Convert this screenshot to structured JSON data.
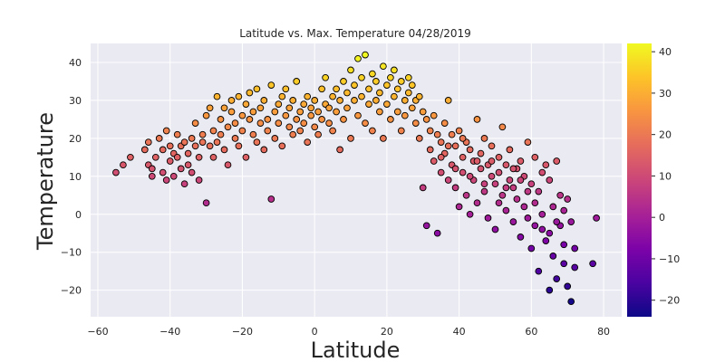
{
  "chart_data": {
    "type": "scatter",
    "title": "Latitude vs. Max. Temperature 04/28/2019",
    "xlabel": "Latitude",
    "ylabel": "Temperature",
    "xlim": [
      -62,
      85
    ],
    "ylim": [
      -27,
      45
    ],
    "x_ticks": [
      -60,
      -40,
      -20,
      0,
      20,
      40,
      60,
      80
    ],
    "y_ticks": [
      -20,
      -10,
      0,
      10,
      20,
      30,
      40
    ],
    "grid": true,
    "colorbar": {
      "colormap": "plasma",
      "range": [
        -24,
        42
      ],
      "ticks": [
        -20,
        -10,
        0,
        10,
        20,
        30,
        40
      ]
    },
    "points": [
      [
        -55,
        11
      ],
      [
        -53,
        13
      ],
      [
        -51,
        15
      ],
      [
        -47,
        17
      ],
      [
        -46,
        13
      ],
      [
        -46,
        19
      ],
      [
        -45,
        10
      ],
      [
        -45,
        12
      ],
      [
        -44,
        15
      ],
      [
        -43,
        20
      ],
      [
        -42,
        17
      ],
      [
        -42,
        11
      ],
      [
        -41,
        9
      ],
      [
        -41,
        22
      ],
      [
        -40,
        18
      ],
      [
        -40,
        14
      ],
      [
        -39,
        10
      ],
      [
        -39,
        16
      ],
      [
        -38,
        21
      ],
      [
        -38,
        15
      ],
      [
        -37,
        12
      ],
      [
        -37,
        18
      ],
      [
        -36,
        8
      ],
      [
        -36,
        19
      ],
      [
        -35,
        16
      ],
      [
        -35,
        13
      ],
      [
        -34,
        20
      ],
      [
        -34,
        11
      ],
      [
        -33,
        18
      ],
      [
        -33,
        24
      ],
      [
        -32,
        15
      ],
      [
        -32,
        9
      ],
      [
        -31,
        19
      ],
      [
        -31,
        21
      ],
      [
        -30,
        3
      ],
      [
        -30,
        26
      ],
      [
        -29,
        18
      ],
      [
        -29,
        28
      ],
      [
        -28,
        22
      ],
      [
        -28,
        15
      ],
      [
        -27,
        31
      ],
      [
        -27,
        19
      ],
      [
        -26,
        25
      ],
      [
        -26,
        21
      ],
      [
        -25,
        17
      ],
      [
        -25,
        28
      ],
      [
        -24,
        23
      ],
      [
        -24,
        13
      ],
      [
        -23,
        27
      ],
      [
        -23,
        30
      ],
      [
        -22,
        20
      ],
      [
        -22,
        24
      ],
      [
        -21,
        31
      ],
      [
        -21,
        18
      ],
      [
        -20,
        26
      ],
      [
        -20,
        22
      ],
      [
        -19,
        29
      ],
      [
        -19,
        15
      ],
      [
        -18,
        25
      ],
      [
        -18,
        32
      ],
      [
        -17,
        21
      ],
      [
        -17,
        27
      ],
      [
        -16,
        33
      ],
      [
        -16,
        19
      ],
      [
        -15,
        24
      ],
      [
        -15,
        28
      ],
      [
        -14,
        30
      ],
      [
        -14,
        17
      ],
      [
        -13,
        25
      ],
      [
        -13,
        22
      ],
      [
        -12,
        4
      ],
      [
        -12,
        34
      ],
      [
        -11,
        27
      ],
      [
        -11,
        20
      ],
      [
        -10,
        29
      ],
      [
        -10,
        24
      ],
      [
        -9,
        31
      ],
      [
        -9,
        18
      ],
      [
        -8,
        26
      ],
      [
        -8,
        33
      ],
      [
        -7,
        23
      ],
      [
        -7,
        28
      ],
      [
        -6,
        30
      ],
      [
        -6,
        21
      ],
      [
        -5,
        25
      ],
      [
        -5,
        35
      ],
      [
        -4,
        27
      ],
      [
        -4,
        22
      ],
      [
        -3,
        29
      ],
      [
        -3,
        24
      ],
      [
        -2,
        31
      ],
      [
        -2,
        19
      ],
      [
        -1,
        26
      ],
      [
        -1,
        28
      ],
      [
        0,
        23
      ],
      [
        0,
        30
      ],
      [
        1,
        27
      ],
      [
        1,
        21
      ],
      [
        2,
        33
      ],
      [
        2,
        25
      ],
      [
        3,
        29
      ],
      [
        3,
        36
      ],
      [
        4,
        24
      ],
      [
        4,
        28
      ],
      [
        5,
        31
      ],
      [
        5,
        22
      ],
      [
        6,
        27
      ],
      [
        6,
        33
      ],
      [
        7,
        30
      ],
      [
        7,
        17
      ],
      [
        8,
        25
      ],
      [
        8,
        35
      ],
      [
        9,
        32
      ],
      [
        9,
        28
      ],
      [
        10,
        38
      ],
      [
        10,
        20
      ],
      [
        11,
        34
      ],
      [
        11,
        30
      ],
      [
        12,
        41
      ],
      [
        12,
        26
      ],
      [
        13,
        36
      ],
      [
        13,
        31
      ],
      [
        14,
        42
      ],
      [
        14,
        24
      ],
      [
        15,
        33
      ],
      [
        15,
        29
      ],
      [
        16,
        37
      ],
      [
        16,
        22
      ],
      [
        17,
        30
      ],
      [
        17,
        35
      ],
      [
        18,
        27
      ],
      [
        18,
        32
      ],
      [
        19,
        39
      ],
      [
        19,
        20
      ],
      [
        20,
        34
      ],
      [
        20,
        29
      ],
      [
        21,
        36
      ],
      [
        21,
        25
      ],
      [
        22,
        31
      ],
      [
        22,
        38
      ],
      [
        23,
        27
      ],
      [
        23,
        33
      ],
      [
        24,
        35
      ],
      [
        24,
        22
      ],
      [
        25,
        30
      ],
      [
        25,
        26
      ],
      [
        26,
        32
      ],
      [
        26,
        36
      ],
      [
        27,
        28
      ],
      [
        27,
        34
      ],
      [
        28,
        24
      ],
      [
        28,
        30
      ],
      [
        29,
        31
      ],
      [
        29,
        20
      ],
      [
        30,
        27
      ],
      [
        30,
        7
      ],
      [
        31,
        25
      ],
      [
        31,
        -3
      ],
      [
        32,
        22
      ],
      [
        32,
        17
      ],
      [
        33,
        26
      ],
      [
        33,
        14
      ],
      [
        34,
        21
      ],
      [
        34,
        -5
      ],
      [
        35,
        19
      ],
      [
        35,
        11
      ],
      [
        36,
        24
      ],
      [
        36,
        16
      ],
      [
        37,
        30
      ],
      [
        37,
        9
      ],
      [
        38,
        21
      ],
      [
        38,
        13
      ],
      [
        39,
        18
      ],
      [
        39,
        7
      ],
      [
        40,
        22
      ],
      [
        40,
        2
      ],
      [
        41,
        15
      ],
      [
        41,
        11
      ],
      [
        42,
        19
      ],
      [
        42,
        5
      ],
      [
        43,
        17
      ],
      [
        43,
        0
      ],
      [
        44,
        14
      ],
      [
        44,
        9
      ],
      [
        45,
        25
      ],
      [
        45,
        3
      ],
      [
        46,
        16
      ],
      [
        46,
        12
      ],
      [
        47,
        20
      ],
      [
        47,
        6
      ],
      [
        48,
        13
      ],
      [
        48,
        -1
      ],
      [
        49,
        18
      ],
      [
        49,
        10
      ],
      [
        50,
        8
      ],
      [
        50,
        -4
      ],
      [
        51,
        15
      ],
      [
        51,
        11
      ],
      [
        52,
        23
      ],
      [
        52,
        5
      ],
      [
        53,
        13
      ],
      [
        53,
        1
      ],
      [
        54,
        17
      ],
      [
        54,
        9
      ],
      [
        55,
        7
      ],
      [
        55,
        -2
      ],
      [
        56,
        12
      ],
      [
        56,
        4
      ],
      [
        57,
        14
      ],
      [
        57,
        -6
      ],
      [
        58,
        10
      ],
      [
        58,
        2
      ],
      [
        59,
        19
      ],
      [
        59,
        -1
      ],
      [
        60,
        8
      ],
      [
        60,
        -9
      ],
      [
        61,
        15
      ],
      [
        61,
        3
      ],
      [
        62,
        6
      ],
      [
        62,
        -15
      ],
      [
        63,
        11
      ],
      [
        63,
        -4
      ],
      [
        64,
        13
      ],
      [
        64,
        -7
      ],
      [
        65,
        9
      ],
      [
        65,
        -20
      ],
      [
        66,
        2
      ],
      [
        66,
        -11
      ],
      [
        67,
        14
      ],
      [
        67,
        -17
      ],
      [
        68,
        -3
      ],
      [
        68,
        5
      ],
      [
        69,
        -13
      ],
      [
        69,
        -8
      ],
      [
        70,
        4
      ],
      [
        70,
        -19
      ],
      [
        71,
        -2
      ],
      [
        71,
        -23
      ],
      [
        72,
        -9
      ],
      [
        72,
        -14
      ],
      [
        78,
        -1
      ],
      [
        77,
        -13
      ],
      [
        47,
        8
      ],
      [
        49,
        14
      ],
      [
        51,
        3
      ],
      [
        53,
        7
      ],
      [
        55,
        12
      ],
      [
        57,
        9
      ],
      [
        59,
        6
      ],
      [
        61,
        -3
      ],
      [
        63,
        0
      ],
      [
        65,
        -5
      ],
      [
        67,
        -2
      ],
      [
        69,
        1
      ],
      [
        35,
        15
      ],
      [
        37,
        18
      ],
      [
        39,
        12
      ],
      [
        41,
        20
      ],
      [
        43,
        10
      ],
      [
        45,
        14
      ]
    ]
  }
}
